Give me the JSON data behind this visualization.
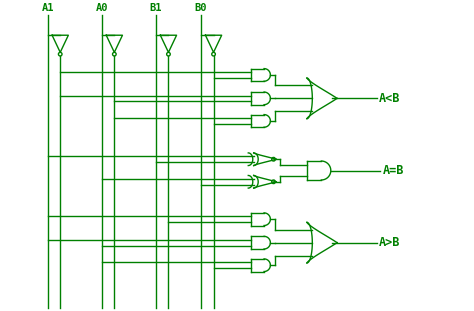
{
  "bg_color": "#ffffff",
  "line_color": "#008000",
  "text_color": "#008000",
  "inputs": [
    "A1",
    "A0",
    "B1",
    "B0"
  ],
  "outputs": [
    "A<B",
    "A=B",
    "A>B"
  ],
  "fig_width": 4.74,
  "fig_height": 3.11,
  "dpi": 100,
  "xlim": [
    0,
    10
  ],
  "ylim": [
    0,
    6.8
  ]
}
